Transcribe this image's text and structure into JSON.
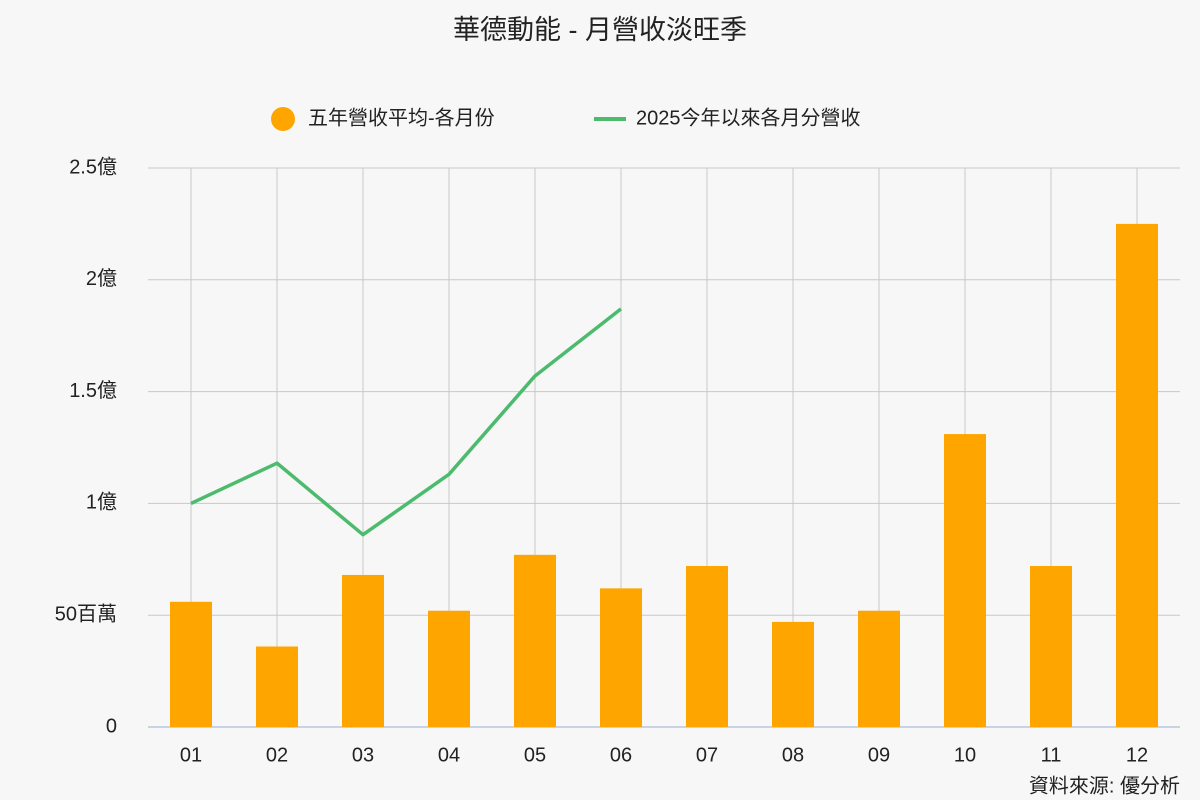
{
  "chart_data": {
    "type": "bar",
    "title": "華德動能 - 月營收淡旺季",
    "source": "資料來源: 優分析",
    "categories": [
      "01",
      "02",
      "03",
      "04",
      "05",
      "06",
      "07",
      "08",
      "09",
      "10",
      "11",
      "12"
    ],
    "series": [
      {
        "name": "五年營收平均-各月份",
        "type": "bar",
        "color": "#ffa500",
        "values": [
          0.56,
          0.36,
          0.68,
          0.52,
          0.77,
          0.62,
          0.72,
          0.47,
          0.52,
          1.31,
          0.72,
          2.25
        ]
      },
      {
        "name": "2025今年以來各月分營收",
        "type": "line",
        "color": "#4dbb6d",
        "values": [
          1.0,
          1.18,
          0.86,
          1.13,
          1.57,
          1.87,
          null,
          null,
          null,
          null,
          null,
          null
        ]
      }
    ],
    "ylim": [
      0,
      2.5
    ],
    "yticks": [
      0,
      {
        "value": 0.5,
        "label": "50百萬"
      },
      {
        "value": 1,
        "label": "1億"
      },
      {
        "value": 1.5,
        "label": "1.5億"
      },
      {
        "value": 2,
        "label": "2億"
      },
      {
        "value": 2.5,
        "label": "2.5億"
      }
    ],
    "grid": true
  }
}
